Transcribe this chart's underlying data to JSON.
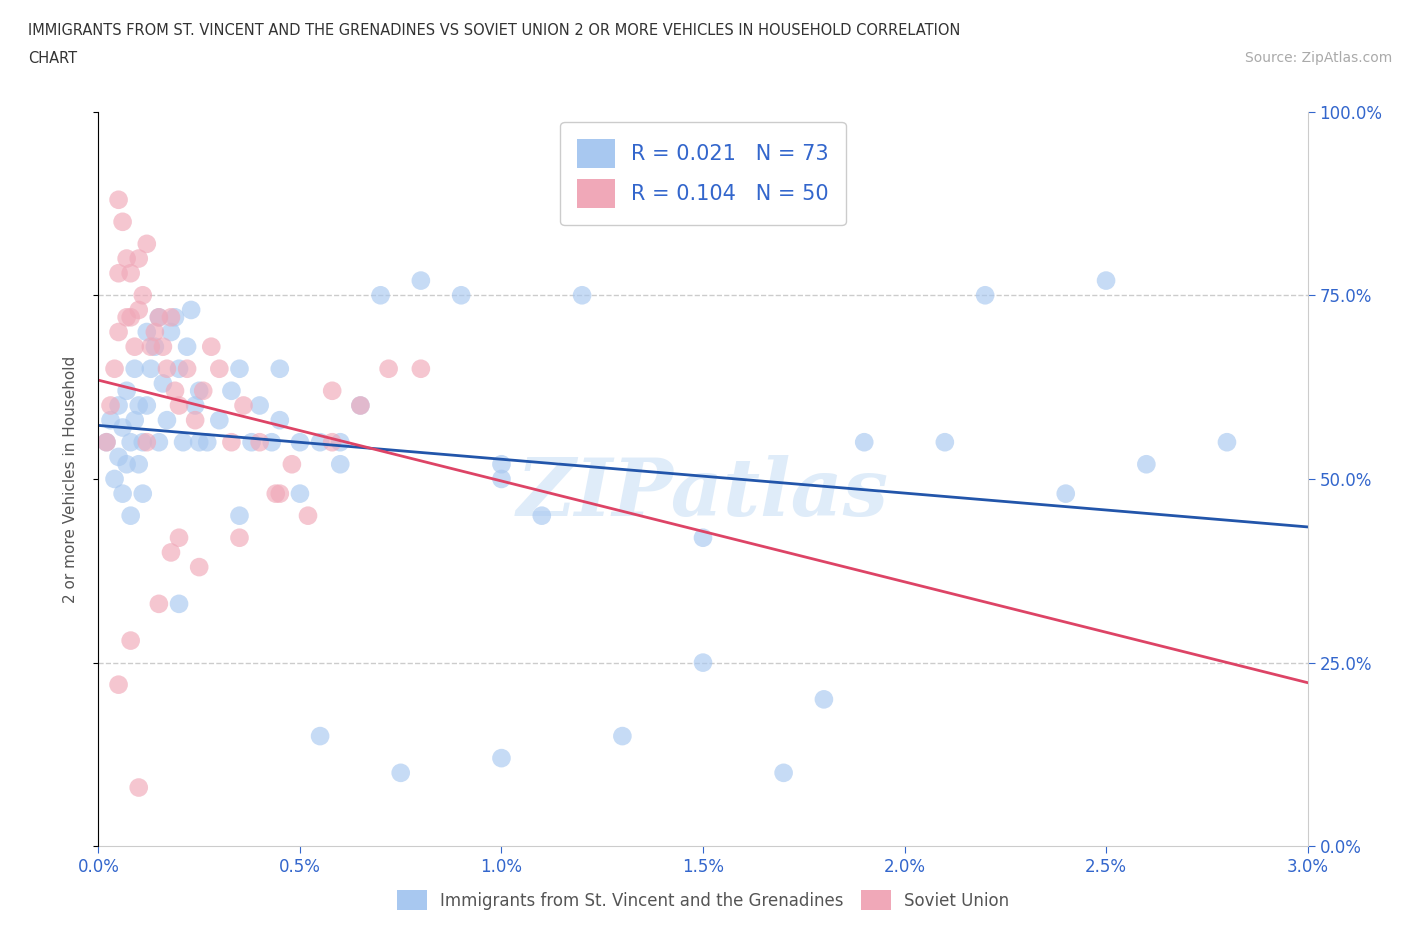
{
  "title_line1": "IMMIGRANTS FROM ST. VINCENT AND THE GRENADINES VS SOVIET UNION 2 OR MORE VEHICLES IN HOUSEHOLD CORRELATION",
  "title_line2": "CHART",
  "source_text": "Source: ZipAtlas.com",
  "ylabel": "2 or more Vehicles in Household",
  "xlim": [
    0.0,
    3.0
  ],
  "ylim": [
    0.0,
    100.0
  ],
  "xtick_labels": [
    "0.0%",
    "0.5%",
    "1.0%",
    "1.5%",
    "2.0%",
    "2.5%",
    "3.0%"
  ],
  "xtick_vals": [
    0.0,
    0.5,
    1.0,
    1.5,
    2.0,
    2.5,
    3.0
  ],
  "ytick_labels_right": [
    "0.0%",
    "25.0%",
    "50.0%",
    "75.0%",
    "100.0%"
  ],
  "ytick_vals": [
    0.0,
    25.0,
    50.0,
    75.0,
    100.0
  ],
  "blue_R": 0.021,
  "blue_N": 73,
  "pink_R": 0.104,
  "pink_N": 50,
  "blue_color": "#a8c8f0",
  "pink_color": "#f0a8b8",
  "blue_line_color": "#2255aa",
  "pink_line_color": "#dd4466",
  "legend_label_blue": "Immigrants from St. Vincent and the Grenadines",
  "legend_label_pink": "Soviet Union",
  "watermark": "ZIPatlas",
  "blue_scatter_x": [
    0.02,
    0.03,
    0.04,
    0.05,
    0.05,
    0.06,
    0.06,
    0.07,
    0.07,
    0.08,
    0.08,
    0.09,
    0.09,
    0.1,
    0.1,
    0.11,
    0.11,
    0.12,
    0.12,
    0.13,
    0.14,
    0.15,
    0.15,
    0.16,
    0.17,
    0.18,
    0.19,
    0.2,
    0.21,
    0.22,
    0.23,
    0.24,
    0.25,
    0.27,
    0.3,
    0.33,
    0.35,
    0.38,
    0.4,
    0.43,
    0.45,
    0.5,
    0.55,
    0.6,
    0.65,
    0.7,
    0.8,
    0.9,
    1.0,
    1.1,
    1.3,
    1.5,
    1.7,
    1.9,
    2.1,
    2.4,
    2.6,
    2.8,
    0.2,
    0.25,
    0.45,
    0.5,
    0.6,
    1.0,
    1.2,
    1.5,
    1.8,
    2.2,
    0.35,
    0.55,
    0.75,
    1.0,
    2.5
  ],
  "blue_scatter_y": [
    55,
    58,
    50,
    53,
    60,
    57,
    48,
    52,
    62,
    55,
    45,
    58,
    65,
    52,
    60,
    48,
    55,
    60,
    70,
    65,
    68,
    72,
    55,
    63,
    58,
    70,
    72,
    65,
    55,
    68,
    73,
    60,
    62,
    55,
    58,
    62,
    65,
    55,
    60,
    55,
    58,
    48,
    55,
    52,
    60,
    75,
    77,
    75,
    50,
    45,
    15,
    42,
    10,
    55,
    55,
    48,
    52,
    55,
    33,
    55,
    65,
    55,
    55,
    52,
    75,
    25,
    20,
    75,
    45,
    15,
    10,
    12,
    77
  ],
  "pink_scatter_x": [
    0.02,
    0.03,
    0.04,
    0.05,
    0.05,
    0.06,
    0.07,
    0.07,
    0.08,
    0.09,
    0.1,
    0.1,
    0.11,
    0.12,
    0.13,
    0.14,
    0.15,
    0.16,
    0.17,
    0.18,
    0.19,
    0.2,
    0.22,
    0.24,
    0.26,
    0.28,
    0.3,
    0.33,
    0.36,
    0.4,
    0.44,
    0.48,
    0.52,
    0.58,
    0.65,
    0.72,
    0.8,
    0.05,
    0.08,
    0.12,
    0.18,
    0.25,
    0.35,
    0.45,
    0.58,
    0.05,
    0.08,
    0.15,
    0.2,
    0.1
  ],
  "pink_scatter_y": [
    55,
    60,
    65,
    70,
    88,
    85,
    80,
    72,
    78,
    68,
    73,
    80,
    75,
    82,
    68,
    70,
    72,
    68,
    65,
    72,
    62,
    60,
    65,
    58,
    62,
    68,
    65,
    55,
    60,
    55,
    48,
    52,
    45,
    55,
    60,
    65,
    65,
    78,
    72,
    55,
    40,
    38,
    42,
    48,
    62,
    22,
    28,
    33,
    42,
    8
  ]
}
